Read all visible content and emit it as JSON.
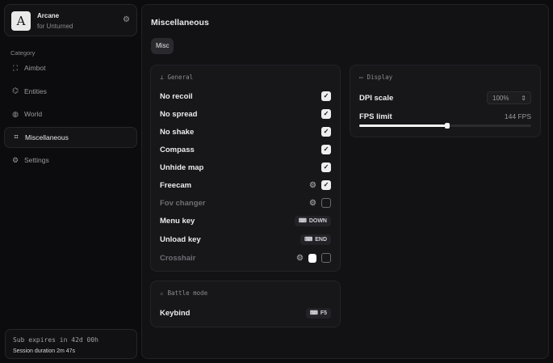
{
  "brand": {
    "logo_letter": "A",
    "name": "Arcane",
    "subtitle": "for Unturned"
  },
  "sidebar": {
    "category_label": "Category",
    "items": [
      {
        "label": "Aimbot",
        "icon": "crosshair-icon",
        "glyph": "⛶"
      },
      {
        "label": "Entities",
        "icon": "scan-icon",
        "glyph": "⌬"
      },
      {
        "label": "World",
        "icon": "globe-icon",
        "glyph": "◍"
      },
      {
        "label": "Miscellaneous",
        "icon": "grid-icon",
        "glyph": "⌗",
        "active": true
      },
      {
        "label": "Settings",
        "icon": "gear-icon",
        "glyph": "⚙"
      }
    ]
  },
  "subscription": {
    "expires": "Sub expires in 42d 00h",
    "session": "Session duration 2m 47s"
  },
  "main": {
    "title": "Miscellaneous",
    "tab": "Misc"
  },
  "general": {
    "title": "General",
    "rows": [
      {
        "label": "No recoil",
        "checked": true
      },
      {
        "label": "No spread",
        "checked": true
      },
      {
        "label": "No shake",
        "checked": true
      },
      {
        "label": "Compass",
        "checked": true
      },
      {
        "label": "Unhide map",
        "checked": true
      },
      {
        "label": "Freecam",
        "checked": true,
        "gear": true
      },
      {
        "label": "Fov changer",
        "checked": false,
        "gear": true,
        "dim": true
      },
      {
        "label": "Menu key",
        "key": "DOWN"
      },
      {
        "label": "Unload key",
        "key": "END"
      },
      {
        "label": "Crosshair",
        "checked": false,
        "gear": true,
        "color": "#ffffff",
        "dim": true
      }
    ]
  },
  "display": {
    "title": "Display",
    "dpi_label": "DPI scale",
    "dpi_value": "100%",
    "fps_label": "FPS limit",
    "fps_value": "144 FPS",
    "fps_slider_fraction": 0.51
  },
  "battle": {
    "title": "Battle mode",
    "keybind_label": "Keybind",
    "keybind_value": "F5"
  }
}
